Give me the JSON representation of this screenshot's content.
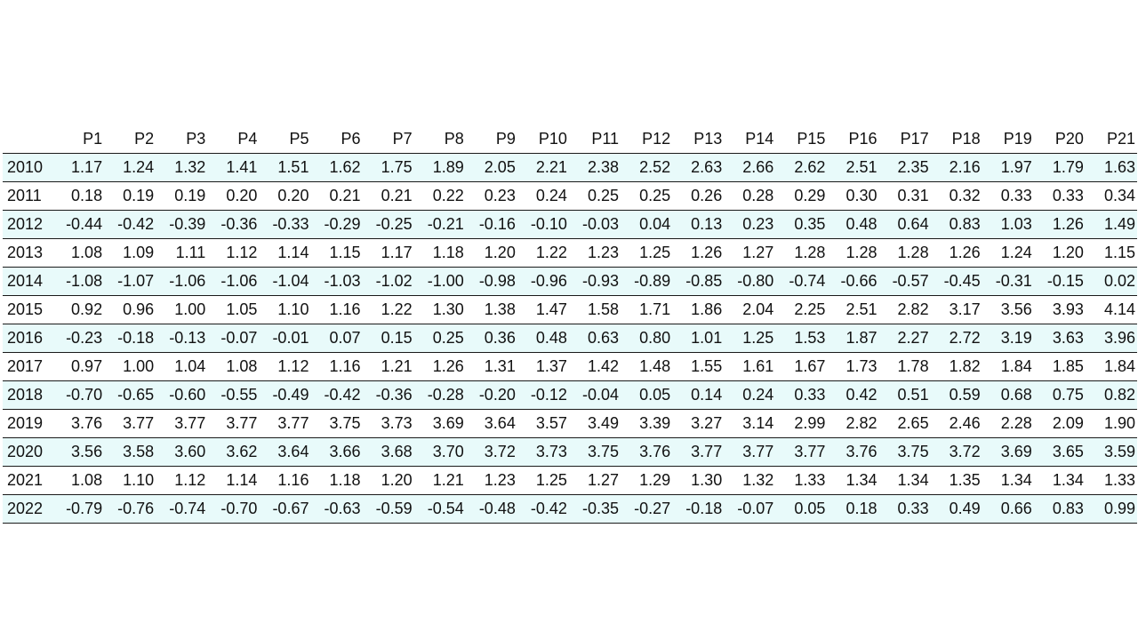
{
  "chart_data": {
    "type": "table",
    "columns": [
      "",
      "P1",
      "P2",
      "P3",
      "P4",
      "P5",
      "P6",
      "P7",
      "P8",
      "P9",
      "P10",
      "P11",
      "P12",
      "P13",
      "P14",
      "P15",
      "P16",
      "P17",
      "P18",
      "P19",
      "P20",
      "P21"
    ],
    "rows": [
      {
        "label": "2010",
        "values": [
          "1.17",
          "1.24",
          "1.32",
          "1.41",
          "1.51",
          "1.62",
          "1.75",
          "1.89",
          "2.05",
          "2.21",
          "2.38",
          "2.52",
          "2.63",
          "2.66",
          "2.62",
          "2.51",
          "2.35",
          "2.16",
          "1.97",
          "1.79",
          "1.63"
        ]
      },
      {
        "label": "2011",
        "values": [
          "0.18",
          "0.19",
          "0.19",
          "0.20",
          "0.20",
          "0.21",
          "0.21",
          "0.22",
          "0.23",
          "0.24",
          "0.25",
          "0.25",
          "0.26",
          "0.28",
          "0.29",
          "0.30",
          "0.31",
          "0.32",
          "0.33",
          "0.33",
          "0.34"
        ]
      },
      {
        "label": "2012",
        "values": [
          "-0.44",
          "-0.42",
          "-0.39",
          "-0.36",
          "-0.33",
          "-0.29",
          "-0.25",
          "-0.21",
          "-0.16",
          "-0.10",
          "-0.03",
          "0.04",
          "0.13",
          "0.23",
          "0.35",
          "0.48",
          "0.64",
          "0.83",
          "1.03",
          "1.26",
          "1.49"
        ]
      },
      {
        "label": "2013",
        "values": [
          "1.08",
          "1.09",
          "1.11",
          "1.12",
          "1.14",
          "1.15",
          "1.17",
          "1.18",
          "1.20",
          "1.22",
          "1.23",
          "1.25",
          "1.26",
          "1.27",
          "1.28",
          "1.28",
          "1.28",
          "1.26",
          "1.24",
          "1.20",
          "1.15"
        ]
      },
      {
        "label": "2014",
        "values": [
          "-1.08",
          "-1.07",
          "-1.06",
          "-1.06",
          "-1.04",
          "-1.03",
          "-1.02",
          "-1.00",
          "-0.98",
          "-0.96",
          "-0.93",
          "-0.89",
          "-0.85",
          "-0.80",
          "-0.74",
          "-0.66",
          "-0.57",
          "-0.45",
          "-0.31",
          "-0.15",
          "0.02"
        ]
      },
      {
        "label": "2015",
        "values": [
          "0.92",
          "0.96",
          "1.00",
          "1.05",
          "1.10",
          "1.16",
          "1.22",
          "1.30",
          "1.38",
          "1.47",
          "1.58",
          "1.71",
          "1.86",
          "2.04",
          "2.25",
          "2.51",
          "2.82",
          "3.17",
          "3.56",
          "3.93",
          "4.14"
        ]
      },
      {
        "label": "2016",
        "values": [
          "-0.23",
          "-0.18",
          "-0.13",
          "-0.07",
          "-0.01",
          "0.07",
          "0.15",
          "0.25",
          "0.36",
          "0.48",
          "0.63",
          "0.80",
          "1.01",
          "1.25",
          "1.53",
          "1.87",
          "2.27",
          "2.72",
          "3.19",
          "3.63",
          "3.96"
        ]
      },
      {
        "label": "2017",
        "values": [
          "0.97",
          "1.00",
          "1.04",
          "1.08",
          "1.12",
          "1.16",
          "1.21",
          "1.26",
          "1.31",
          "1.37",
          "1.42",
          "1.48",
          "1.55",
          "1.61",
          "1.67",
          "1.73",
          "1.78",
          "1.82",
          "1.84",
          "1.85",
          "1.84"
        ]
      },
      {
        "label": "2018",
        "values": [
          "-0.70",
          "-0.65",
          "-0.60",
          "-0.55",
          "-0.49",
          "-0.42",
          "-0.36",
          "-0.28",
          "-0.20",
          "-0.12",
          "-0.04",
          "0.05",
          "0.14",
          "0.24",
          "0.33",
          "0.42",
          "0.51",
          "0.59",
          "0.68",
          "0.75",
          "0.82"
        ]
      },
      {
        "label": "2019",
        "values": [
          "3.76",
          "3.77",
          "3.77",
          "3.77",
          "3.77",
          "3.75",
          "3.73",
          "3.69",
          "3.64",
          "3.57",
          "3.49",
          "3.39",
          "3.27",
          "3.14",
          "2.99",
          "2.82",
          "2.65",
          "2.46",
          "2.28",
          "2.09",
          "1.90"
        ]
      },
      {
        "label": "2020",
        "values": [
          "3.56",
          "3.58",
          "3.60",
          "3.62",
          "3.64",
          "3.66",
          "3.68",
          "3.70",
          "3.72",
          "3.73",
          "3.75",
          "3.76",
          "3.77",
          "3.77",
          "3.77",
          "3.76",
          "3.75",
          "3.72",
          "3.69",
          "3.65",
          "3.59"
        ]
      },
      {
        "label": "2021",
        "values": [
          "1.08",
          "1.10",
          "1.12",
          "1.14",
          "1.16",
          "1.18",
          "1.20",
          "1.21",
          "1.23",
          "1.25",
          "1.27",
          "1.29",
          "1.30",
          "1.32",
          "1.33",
          "1.34",
          "1.34",
          "1.35",
          "1.34",
          "1.34",
          "1.33"
        ]
      },
      {
        "label": "2022",
        "values": [
          "-0.79",
          "-0.76",
          "-0.74",
          "-0.70",
          "-0.67",
          "-0.63",
          "-0.59",
          "-0.54",
          "-0.48",
          "-0.42",
          "-0.35",
          "-0.27",
          "-0.18",
          "-0.07",
          "0.05",
          "0.18",
          "0.33",
          "0.49",
          "0.66",
          "0.83",
          "0.99"
        ]
      }
    ],
    "shaded_row_color": "#e8fafa",
    "shading": "alternating rows, starting with the first data row"
  }
}
